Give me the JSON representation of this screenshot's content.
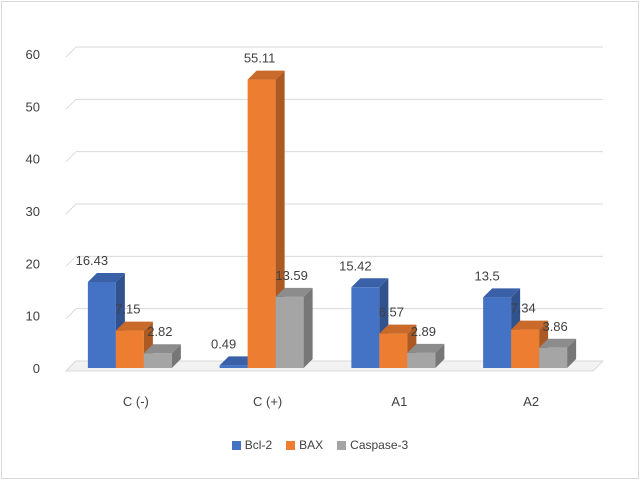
{
  "chart_data": {
    "type": "bar",
    "title": "",
    "xlabel": "",
    "ylabel": "",
    "categories": [
      "C (-)",
      "C (+)",
      "A1",
      "A2"
    ],
    "ylim": [
      0,
      60
    ],
    "yticks": [
      0,
      10,
      20,
      30,
      40,
      50,
      60
    ],
    "grid": true,
    "legend_position": "bottom",
    "style": "3d-clustered-column",
    "series": [
      {
        "name": "Bcl-2",
        "color": "#4472c4",
        "values": [
          16.43,
          0.49,
          15.42,
          13.5
        ],
        "labels": [
          "16.43",
          "0.49",
          "15.42",
          "13.5"
        ]
      },
      {
        "name": "BAX",
        "color": "#ed7d31",
        "values": [
          7.15,
          55.11,
          6.57,
          7.34
        ],
        "labels": [
          "7.15",
          "55.11",
          "6.57",
          "7.34"
        ]
      },
      {
        "name": "Caspase-3",
        "color": "#a5a5a5",
        "values": [
          2.82,
          13.59,
          2.89,
          3.86
        ],
        "labels": [
          "2.82",
          "13.59",
          "2.89",
          "3.86"
        ]
      }
    ]
  }
}
